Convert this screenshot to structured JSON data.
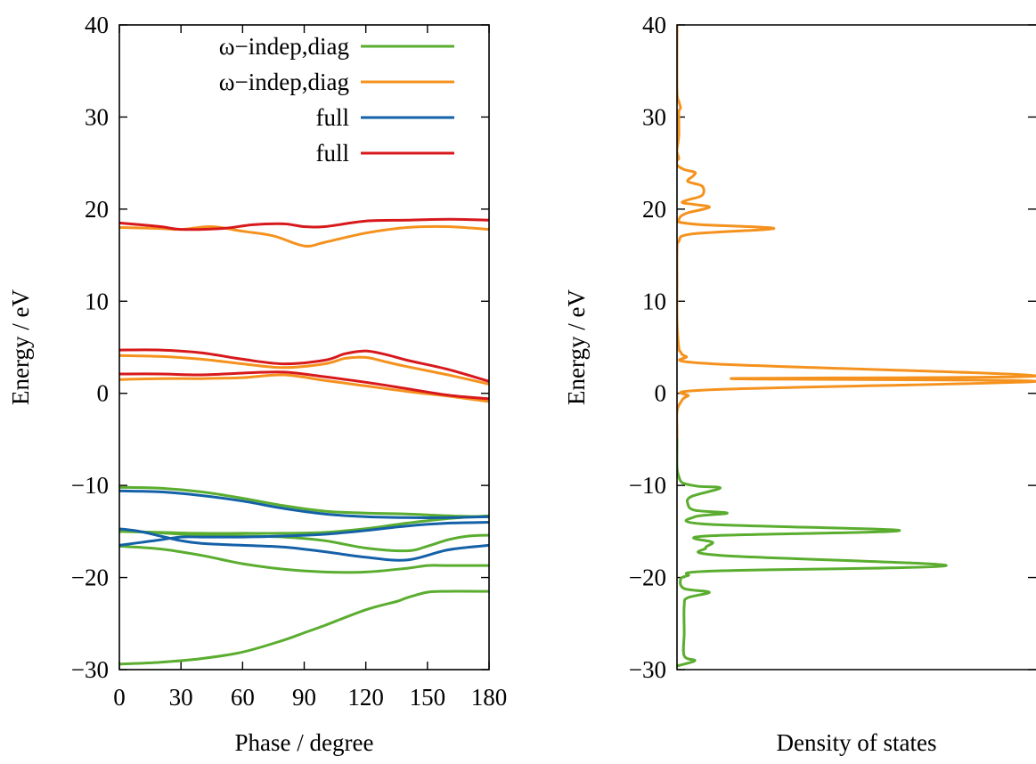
{
  "chart_data": [
    {
      "type": "line",
      "xlabel": "Phase / degree",
      "ylabel": "Energy / eV",
      "xlim": [
        0,
        180
      ],
      "ylim": [
        -30,
        40
      ],
      "xticks": [
        0,
        30,
        60,
        90,
        120,
        150,
        180
      ],
      "yticks": [
        -30,
        -20,
        -10,
        0,
        10,
        20,
        30,
        40
      ],
      "legend_position": "top-right",
      "legend": [
        {
          "label": "ω−indep,diag",
          "color": "#5aad2f"
        },
        {
          "label": "ω−indep,diag",
          "color": "#f5921e"
        },
        {
          "label": "full",
          "color": "#1461a8"
        },
        {
          "label": "full",
          "color": "#d7191c"
        }
      ],
      "series": [
        {
          "group": 0,
          "color": "#5aad2f",
          "x": [
            0,
            20,
            40,
            60,
            80,
            90,
            100,
            120,
            135,
            140,
            150,
            160,
            180
          ],
          "y": [
            -29.4,
            -29.2,
            -28.8,
            -28.1,
            -26.8,
            -26.0,
            -25.2,
            -23.5,
            -22.6,
            -22.2,
            -21.6,
            -21.5,
            -21.5
          ]
        },
        {
          "group": 0,
          "color": "#5aad2f",
          "x": [
            0,
            20,
            40,
            60,
            80,
            100,
            120,
            140,
            150,
            160,
            180
          ],
          "y": [
            -16.6,
            -16.9,
            -17.6,
            -18.5,
            -19.1,
            -19.4,
            -19.4,
            -19.0,
            -18.7,
            -18.7,
            -18.7
          ]
        },
        {
          "group": 0,
          "color": "#5aad2f",
          "x": [
            0,
            20,
            40,
            60,
            80,
            100,
            120,
            140,
            160,
            180
          ],
          "y": [
            -15.0,
            -15.1,
            -15.2,
            -15.2,
            -15.2,
            -15.1,
            -14.7,
            -14.1,
            -13.6,
            -13.3
          ]
        },
        {
          "group": 0,
          "color": "#5aad2f",
          "x": [
            0,
            40,
            60,
            80,
            100,
            120,
            140,
            150,
            160,
            170,
            180
          ],
          "y": [
            -14.9,
            -15.4,
            -15.5,
            -15.6,
            -16.0,
            -16.8,
            -17.1,
            -16.6,
            -15.9,
            -15.5,
            -15.4
          ]
        },
        {
          "group": 0,
          "color": "#5aad2f",
          "x": [
            0,
            20,
            40,
            60,
            80,
            100,
            120,
            140,
            160,
            180
          ],
          "y": [
            -10.2,
            -10.3,
            -10.7,
            -11.4,
            -12.2,
            -12.8,
            -13.0,
            -13.1,
            -13.3,
            -13.4
          ]
        },
        {
          "group": 2,
          "color": "#1461a8",
          "x": [
            0,
            20,
            40,
            60,
            80,
            100,
            120,
            140,
            160,
            180
          ],
          "y": [
            -10.6,
            -10.7,
            -11.1,
            -11.7,
            -12.5,
            -13.1,
            -13.4,
            -13.5,
            -13.5,
            -13.4
          ]
        },
        {
          "group": 2,
          "color": "#1461a8",
          "x": [
            0,
            10,
            20,
            30,
            40,
            60,
            80,
            100,
            120,
            140,
            160,
            180
          ],
          "y": [
            -14.7,
            -15.0,
            -15.5,
            -16.0,
            -16.3,
            -16.5,
            -16.7,
            -17.2,
            -17.8,
            -18.1,
            -17.0,
            -16.5
          ]
        },
        {
          "group": 2,
          "color": "#1461a8",
          "x": [
            0,
            10,
            20,
            30,
            40,
            60,
            80,
            100,
            120,
            140,
            160,
            180
          ],
          "y": [
            -16.5,
            -16.2,
            -15.9,
            -15.6,
            -15.6,
            -15.6,
            -15.5,
            -15.3,
            -14.9,
            -14.4,
            -14.1,
            -14.0
          ]
        },
        {
          "group": 1,
          "color": "#f5921e",
          "x": [
            0,
            20,
            30,
            45,
            60,
            75,
            90,
            100,
            120,
            140,
            160,
            180
          ],
          "y": [
            18.0,
            17.9,
            17.8,
            18.1,
            17.6,
            17.1,
            16.0,
            16.4,
            17.4,
            18.0,
            18.1,
            17.8
          ]
        },
        {
          "group": 1,
          "color": "#f5921e",
          "x": [
            0,
            20,
            40,
            60,
            80,
            100,
            110,
            120,
            130,
            140,
            160,
            180
          ],
          "y": [
            4.1,
            4.0,
            3.7,
            3.2,
            2.8,
            3.2,
            3.8,
            3.9,
            3.4,
            2.9,
            2.0,
            1.0
          ]
        },
        {
          "group": 1,
          "color": "#f5921e",
          "x": [
            0,
            20,
            40,
            60,
            80,
            100,
            120,
            140,
            160,
            180
          ],
          "y": [
            1.5,
            1.6,
            1.6,
            1.7,
            2.0,
            1.4,
            0.8,
            0.2,
            -0.3,
            -0.9
          ]
        },
        {
          "group": 3,
          "color": "#d7191c",
          "x": [
            0,
            20,
            30,
            50,
            65,
            80,
            90,
            100,
            120,
            140,
            160,
            180
          ],
          "y": [
            18.5,
            18.1,
            17.8,
            17.9,
            18.3,
            18.4,
            18.1,
            18.1,
            18.7,
            18.8,
            18.9,
            18.8
          ]
        },
        {
          "group": 3,
          "color": "#d7191c",
          "x": [
            0,
            20,
            40,
            60,
            80,
            100,
            110,
            120,
            130,
            140,
            160,
            180
          ],
          "y": [
            4.7,
            4.7,
            4.4,
            3.7,
            3.2,
            3.6,
            4.3,
            4.6,
            4.2,
            3.6,
            2.6,
            1.3
          ]
        },
        {
          "group": 3,
          "color": "#d7191c",
          "x": [
            0,
            20,
            40,
            60,
            80,
            100,
            120,
            140,
            160,
            180
          ],
          "y": [
            2.1,
            2.1,
            2.0,
            2.2,
            2.3,
            1.8,
            1.2,
            0.5,
            -0.2,
            -0.6
          ]
        }
      ]
    },
    {
      "type": "line",
      "xlabel": "Density of states",
      "ylabel": "Energy / eV",
      "ylim": [
        -30,
        40
      ],
      "yticks": [
        -30,
        -20,
        -10,
        0,
        10,
        20,
        30,
        40
      ],
      "xlim": [
        0,
        1
      ],
      "series": [
        {
          "color": "#f5921e",
          "x": [
            0.0,
            0.0,
            0.005,
            0.01,
            0.005,
            0.005,
            0.0,
            0.0,
            0.005,
            0.0,
            0.0,
            0.02,
            0.05,
            0.045,
            0.03,
            0.07,
            0.07,
            0.03,
            0.015,
            0.05,
            0.09,
            0.03,
            0.01,
            0.005,
            0.005,
            0.07,
            0.27,
            0.04,
            0.005,
            0.0,
            0.0,
            0.0,
            0.005,
            0.01,
            0.025,
            0.1,
            1.0,
            0.15,
            1.0,
            0.1,
            0.03,
            0.01,
            0.0,
            0.0,
            0.0
          ],
          "y": [
            40.0,
            33.0,
            31.7,
            31.0,
            30.5,
            28.0,
            26.5,
            26.2,
            25.5,
            25.3,
            24.8,
            24.3,
            24.0,
            23.6,
            23.0,
            22.5,
            21.5,
            21.0,
            20.7,
            20.5,
            20.2,
            19.6,
            19.2,
            18.8,
            18.6,
            18.3,
            17.9,
            17.3,
            16.5,
            15.5,
            12.0,
            8.0,
            5.0,
            4.5,
            4.0,
            3.2,
            1.9,
            1.6,
            1.3,
            0.4,
            -0.3,
            -1.0,
            -2.0,
            -4.0,
            -6.0
          ]
        },
        {
          "color": "#5aad2f",
          "x": [
            0.0,
            0.0,
            0.005,
            0.01,
            0.02,
            0.06,
            0.12,
            0.04,
            0.03,
            0.05,
            0.14,
            0.05,
            0.08,
            0.62,
            0.08,
            0.1,
            0.08,
            0.12,
            0.75,
            0.1,
            0.03,
            0.01,
            0.02,
            0.09,
            0.03,
            0.02,
            0.02,
            0.02,
            0.05,
            0.02,
            0.0
          ],
          "y": [
            -5.0,
            -8.0,
            -9.0,
            -9.5,
            -9.8,
            -10.1,
            -10.3,
            -11.2,
            -12.0,
            -12.7,
            -13.0,
            -13.4,
            -14.2,
            -14.9,
            -15.5,
            -16.2,
            -16.8,
            -17.6,
            -18.7,
            -19.3,
            -19.8,
            -20.2,
            -21.2,
            -21.6,
            -22.2,
            -23.0,
            -26.0,
            -28.5,
            -29.0,
            -29.4,
            -29.6
          ]
        }
      ]
    }
  ]
}
